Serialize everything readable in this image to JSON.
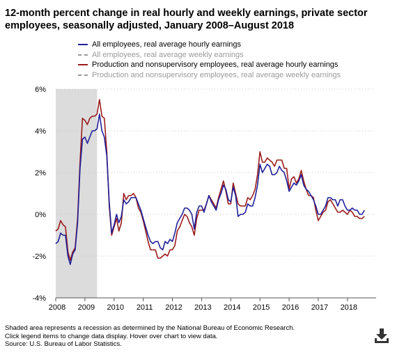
{
  "title": "12-month percent change in real hourly and weekly earnings, private sector employees, seasonally adjusted, January 2008–August 2018",
  "footnotes": [
    "Shaded area represents a recession as determined by the National Bureau of Economic Research.",
    "Click legend items to change data display. Hover over chart to view data.",
    "Source: U.S. Bureau of Labor Statistics."
  ],
  "download_icon": "download-icon",
  "chart_data": {
    "type": "line",
    "x_axis": {
      "start": "2008-01",
      "end": "2018-08",
      "tick_labels": [
        "2008",
        "2009",
        "2010",
        "2011",
        "2012",
        "2013",
        "2014",
        "2015",
        "2016",
        "2017",
        "2018"
      ]
    },
    "y_axis": {
      "min": -4,
      "max": 6,
      "tick_labels": [
        "-4%",
        "-2%",
        "0%",
        "2%",
        "4%",
        "6%"
      ],
      "tick_values": [
        -4,
        -2,
        0,
        2,
        4,
        6
      ]
    },
    "grid": "horizontal dotted",
    "recession": {
      "start": "2008-01",
      "end": "2009-06"
    },
    "legend_position": "top",
    "series": [
      {
        "name": "All employees, real average hourly earnings",
        "color": "#1f1f9a",
        "style": "solid",
        "visible": true,
        "points": [
          [
            "2008-01",
            -1.4
          ],
          [
            "2008-02",
            -1.3
          ],
          [
            "2008-03",
            -0.9
          ],
          [
            "2008-04",
            -1.0
          ],
          [
            "2008-05",
            -1.0
          ],
          [
            "2008-06",
            -2.0
          ],
          [
            "2008-07",
            -2.4
          ],
          [
            "2008-08",
            -1.9
          ],
          [
            "2008-09",
            -1.7
          ],
          [
            "2008-10",
            -0.4
          ],
          [
            "2008-11",
            2.2
          ],
          [
            "2008-12",
            3.6
          ],
          [
            "2009-01",
            3.7
          ],
          [
            "2009-02",
            3.4
          ],
          [
            "2009-03",
            3.7
          ],
          [
            "2009-04",
            4.0
          ],
          [
            "2009-05",
            4.0
          ],
          [
            "2009-06",
            4.1
          ],
          [
            "2009-07",
            4.8
          ],
          [
            "2009-08",
            4.0
          ],
          [
            "2009-09",
            3.7
          ],
          [
            "2009-10",
            2.8
          ],
          [
            "2009-11",
            0.6
          ],
          [
            "2009-12",
            -0.9
          ],
          [
            "2010-01",
            -0.5
          ],
          [
            "2010-02",
            0.0
          ],
          [
            "2010-03",
            -0.4
          ],
          [
            "2010-04",
            -0.1
          ],
          [
            "2010-05",
            0.7
          ],
          [
            "2010-06",
            0.5
          ],
          [
            "2010-07",
            0.6
          ],
          [
            "2010-08",
            0.8
          ],
          [
            "2010-09",
            0.8
          ],
          [
            "2010-10",
            0.8
          ],
          [
            "2010-11",
            0.5
          ],
          [
            "2010-12",
            0.2
          ],
          [
            "2011-01",
            -0.2
          ],
          [
            "2011-02",
            -0.6
          ],
          [
            "2011-03",
            -1.0
          ],
          [
            "2011-04",
            -1.3
          ],
          [
            "2011-05",
            -1.4
          ],
          [
            "2011-06",
            -1.3
          ],
          [
            "2011-07",
            -1.3
          ],
          [
            "2011-08",
            -1.6
          ],
          [
            "2011-09",
            -1.7
          ],
          [
            "2011-10",
            -1.3
          ],
          [
            "2011-11",
            -1.4
          ],
          [
            "2011-12",
            -1.2
          ],
          [
            "2012-01",
            -1.3
          ],
          [
            "2012-02",
            -0.9
          ],
          [
            "2012-03",
            -0.4
          ],
          [
            "2012-04",
            -0.2
          ],
          [
            "2012-05",
            0.0
          ],
          [
            "2012-06",
            0.3
          ],
          [
            "2012-07",
            0.3
          ],
          [
            "2012-08",
            0.2
          ],
          [
            "2012-09",
            0.0
          ],
          [
            "2012-10",
            -0.7
          ],
          [
            "2012-11",
            0.1
          ],
          [
            "2012-12",
            0.4
          ],
          [
            "2013-01",
            0.4
          ],
          [
            "2013-02",
            0.1
          ],
          [
            "2013-03",
            0.5
          ],
          [
            "2013-04",
            0.9
          ],
          [
            "2013-05",
            0.6
          ],
          [
            "2013-06",
            0.4
          ],
          [
            "2013-07",
            0.2
          ],
          [
            "2013-08",
            0.7
          ],
          [
            "2013-09",
            1.0
          ],
          [
            "2013-10",
            1.4
          ],
          [
            "2013-11",
            1.2
          ],
          [
            "2013-12",
            0.7
          ],
          [
            "2014-01",
            0.6
          ],
          [
            "2014-02",
            1.3
          ],
          [
            "2014-03",
            0.9
          ],
          [
            "2014-04",
            -0.1
          ],
          [
            "2014-05",
            0.0
          ],
          [
            "2014-06",
            0.0
          ],
          [
            "2014-07",
            0.1
          ],
          [
            "2014-08",
            0.5
          ],
          [
            "2014-09",
            0.4
          ],
          [
            "2014-10",
            0.4
          ],
          [
            "2014-11",
            0.8
          ],
          [
            "2014-12",
            1.4
          ],
          [
            "2015-01",
            2.4
          ],
          [
            "2015-02",
            2.0
          ],
          [
            "2015-03",
            2.2
          ],
          [
            "2015-04",
            2.4
          ],
          [
            "2015-05",
            2.3
          ],
          [
            "2015-06",
            1.9
          ],
          [
            "2015-07",
            1.9
          ],
          [
            "2015-08",
            2.0
          ],
          [
            "2015-09",
            2.3
          ],
          [
            "2015-10",
            2.1
          ],
          [
            "2015-11",
            2.0
          ],
          [
            "2015-12",
            1.6
          ],
          [
            "2016-01",
            1.1
          ],
          [
            "2016-02",
            1.3
          ],
          [
            "2016-03",
            1.5
          ],
          [
            "2016-04",
            1.4
          ],
          [
            "2016-05",
            1.6
          ],
          [
            "2016-06",
            1.9
          ],
          [
            "2016-07",
            1.4
          ],
          [
            "2016-08",
            1.2
          ],
          [
            "2016-09",
            1.1
          ],
          [
            "2016-10",
            0.9
          ],
          [
            "2016-11",
            0.7
          ],
          [
            "2016-12",
            0.4
          ],
          [
            "2017-01",
            0.0
          ],
          [
            "2017-02",
            0.0
          ],
          [
            "2017-03",
            0.2
          ],
          [
            "2017-04",
            0.4
          ],
          [
            "2017-05",
            0.8
          ],
          [
            "2017-06",
            0.8
          ],
          [
            "2017-07",
            0.7
          ],
          [
            "2017-08",
            0.7
          ],
          [
            "2017-09",
            0.4
          ],
          [
            "2017-10",
            0.7
          ],
          [
            "2017-11",
            0.7
          ],
          [
            "2017-12",
            0.4
          ],
          [
            "2018-01",
            0.2
          ],
          [
            "2018-02",
            0.2
          ],
          [
            "2018-03",
            0.3
          ],
          [
            "2018-04",
            0.2
          ],
          [
            "2018-05",
            0.2
          ],
          [
            "2018-06",
            0.0
          ],
          [
            "2018-07",
            0.0
          ],
          [
            "2018-08",
            0.2
          ]
        ]
      },
      {
        "name": "All employees, real average weekly earnings",
        "color": "#9a9a9a",
        "style": "dashed",
        "visible": false,
        "points": []
      },
      {
        "name": "Production and nonsupervisory employees, real average hourly earnings",
        "color": "#9b1b1b",
        "style": "solid",
        "visible": true,
        "points": [
          [
            "2008-01",
            -0.8
          ],
          [
            "2008-02",
            -0.7
          ],
          [
            "2008-03",
            -0.3
          ],
          [
            "2008-04",
            -0.5
          ],
          [
            "2008-05",
            -0.6
          ],
          [
            "2008-06",
            -1.8
          ],
          [
            "2008-07",
            -2.2
          ],
          [
            "2008-08",
            -1.8
          ],
          [
            "2008-09",
            -1.6
          ],
          [
            "2008-10",
            -0.2
          ],
          [
            "2008-11",
            2.5
          ],
          [
            "2008-12",
            4.6
          ],
          [
            "2009-01",
            4.5
          ],
          [
            "2009-02",
            4.3
          ],
          [
            "2009-03",
            4.6
          ],
          [
            "2009-04",
            4.7
          ],
          [
            "2009-05",
            4.7
          ],
          [
            "2009-06",
            4.8
          ],
          [
            "2009-07",
            5.5
          ],
          [
            "2009-08",
            4.7
          ],
          [
            "2009-09",
            4.6
          ],
          [
            "2009-10",
            3.0
          ],
          [
            "2009-11",
            0.4
          ],
          [
            "2009-12",
            -1.0
          ],
          [
            "2010-01",
            -0.6
          ],
          [
            "2010-02",
            -0.2
          ],
          [
            "2010-03",
            -0.8
          ],
          [
            "2010-04",
            -0.4
          ],
          [
            "2010-05",
            1.0
          ],
          [
            "2010-06",
            0.7
          ],
          [
            "2010-07",
            0.9
          ],
          [
            "2010-08",
            0.9
          ],
          [
            "2010-09",
            1.0
          ],
          [
            "2010-10",
            0.8
          ],
          [
            "2010-11",
            0.3
          ],
          [
            "2010-12",
            0.1
          ],
          [
            "2011-01",
            -0.3
          ],
          [
            "2011-02",
            -0.8
          ],
          [
            "2011-03",
            -1.3
          ],
          [
            "2011-04",
            -1.7
          ],
          [
            "2011-05",
            -1.7
          ],
          [
            "2011-06",
            -1.7
          ],
          [
            "2011-07",
            -2.1
          ],
          [
            "2011-08",
            -2.1
          ],
          [
            "2011-09",
            -2.0
          ],
          [
            "2011-10",
            -1.9
          ],
          [
            "2011-11",
            -2.0
          ],
          [
            "2011-12",
            -1.7
          ],
          [
            "2012-01",
            -1.7
          ],
          [
            "2012-02",
            -1.5
          ],
          [
            "2012-03",
            -0.8
          ],
          [
            "2012-04",
            -0.6
          ],
          [
            "2012-05",
            -0.3
          ],
          [
            "2012-06",
            0.0
          ],
          [
            "2012-07",
            -0.1
          ],
          [
            "2012-08",
            -0.4
          ],
          [
            "2012-09",
            -0.6
          ],
          [
            "2012-10",
            -1.0
          ],
          [
            "2012-11",
            -0.2
          ],
          [
            "2012-12",
            0.2
          ],
          [
            "2013-01",
            0.2
          ],
          [
            "2013-02",
            0.2
          ],
          [
            "2013-03",
            0.5
          ],
          [
            "2013-04",
            0.9
          ],
          [
            "2013-05",
            0.7
          ],
          [
            "2013-06",
            0.5
          ],
          [
            "2013-07",
            0.3
          ],
          [
            "2013-08",
            0.8
          ],
          [
            "2013-09",
            1.2
          ],
          [
            "2013-10",
            1.6
          ],
          [
            "2013-11",
            1.1
          ],
          [
            "2013-12",
            0.5
          ],
          [
            "2014-01",
            0.5
          ],
          [
            "2014-02",
            1.5
          ],
          [
            "2014-03",
            1.0
          ],
          [
            "2014-04",
            0.5
          ],
          [
            "2014-05",
            0.4
          ],
          [
            "2014-06",
            0.4
          ],
          [
            "2014-07",
            0.4
          ],
          [
            "2014-08",
            0.8
          ],
          [
            "2014-09",
            0.7
          ],
          [
            "2014-10",
            0.9
          ],
          [
            "2014-11",
            1.2
          ],
          [
            "2014-12",
            1.9
          ],
          [
            "2015-01",
            3.0
          ],
          [
            "2015-02",
            2.5
          ],
          [
            "2015-03",
            2.5
          ],
          [
            "2015-04",
            2.7
          ],
          [
            "2015-05",
            2.6
          ],
          [
            "2015-06",
            2.5
          ],
          [
            "2015-07",
            2.3
          ],
          [
            "2015-08",
            2.6
          ],
          [
            "2015-09",
            2.6
          ],
          [
            "2015-10",
            2.6
          ],
          [
            "2015-11",
            2.2
          ],
          [
            "2015-12",
            2.2
          ],
          [
            "2016-01",
            1.2
          ],
          [
            "2016-02",
            1.7
          ],
          [
            "2016-03",
            1.8
          ],
          [
            "2016-04",
            1.5
          ],
          [
            "2016-05",
            1.7
          ],
          [
            "2016-06",
            2.1
          ],
          [
            "2016-07",
            1.6
          ],
          [
            "2016-08",
            1.2
          ],
          [
            "2016-09",
            0.9
          ],
          [
            "2016-10",
            0.9
          ],
          [
            "2016-11",
            0.8
          ],
          [
            "2016-12",
            0.2
          ],
          [
            "2017-01",
            -0.3
          ],
          [
            "2017-02",
            -0.1
          ],
          [
            "2017-03",
            0.1
          ],
          [
            "2017-04",
            0.2
          ],
          [
            "2017-05",
            0.6
          ],
          [
            "2017-06",
            0.7
          ],
          [
            "2017-07",
            0.5
          ],
          [
            "2017-08",
            0.3
          ],
          [
            "2017-09",
            0.1
          ],
          [
            "2017-10",
            0.1
          ],
          [
            "2017-11",
            0.2
          ],
          [
            "2017-12",
            0.1
          ],
          [
            "2018-01",
            0.0
          ],
          [
            "2018-02",
            0.2
          ],
          [
            "2018-03",
            0.1
          ],
          [
            "2018-04",
            -0.1
          ],
          [
            "2018-05",
            -0.1
          ],
          [
            "2018-06",
            -0.2
          ],
          [
            "2018-07",
            -0.2
          ],
          [
            "2018-08",
            -0.1
          ]
        ]
      },
      {
        "name": "Production and nonsupervisory employees, real average weekly earnings",
        "color": "#9a9a9a",
        "style": "dashed",
        "visible": false,
        "points": []
      }
    ]
  }
}
